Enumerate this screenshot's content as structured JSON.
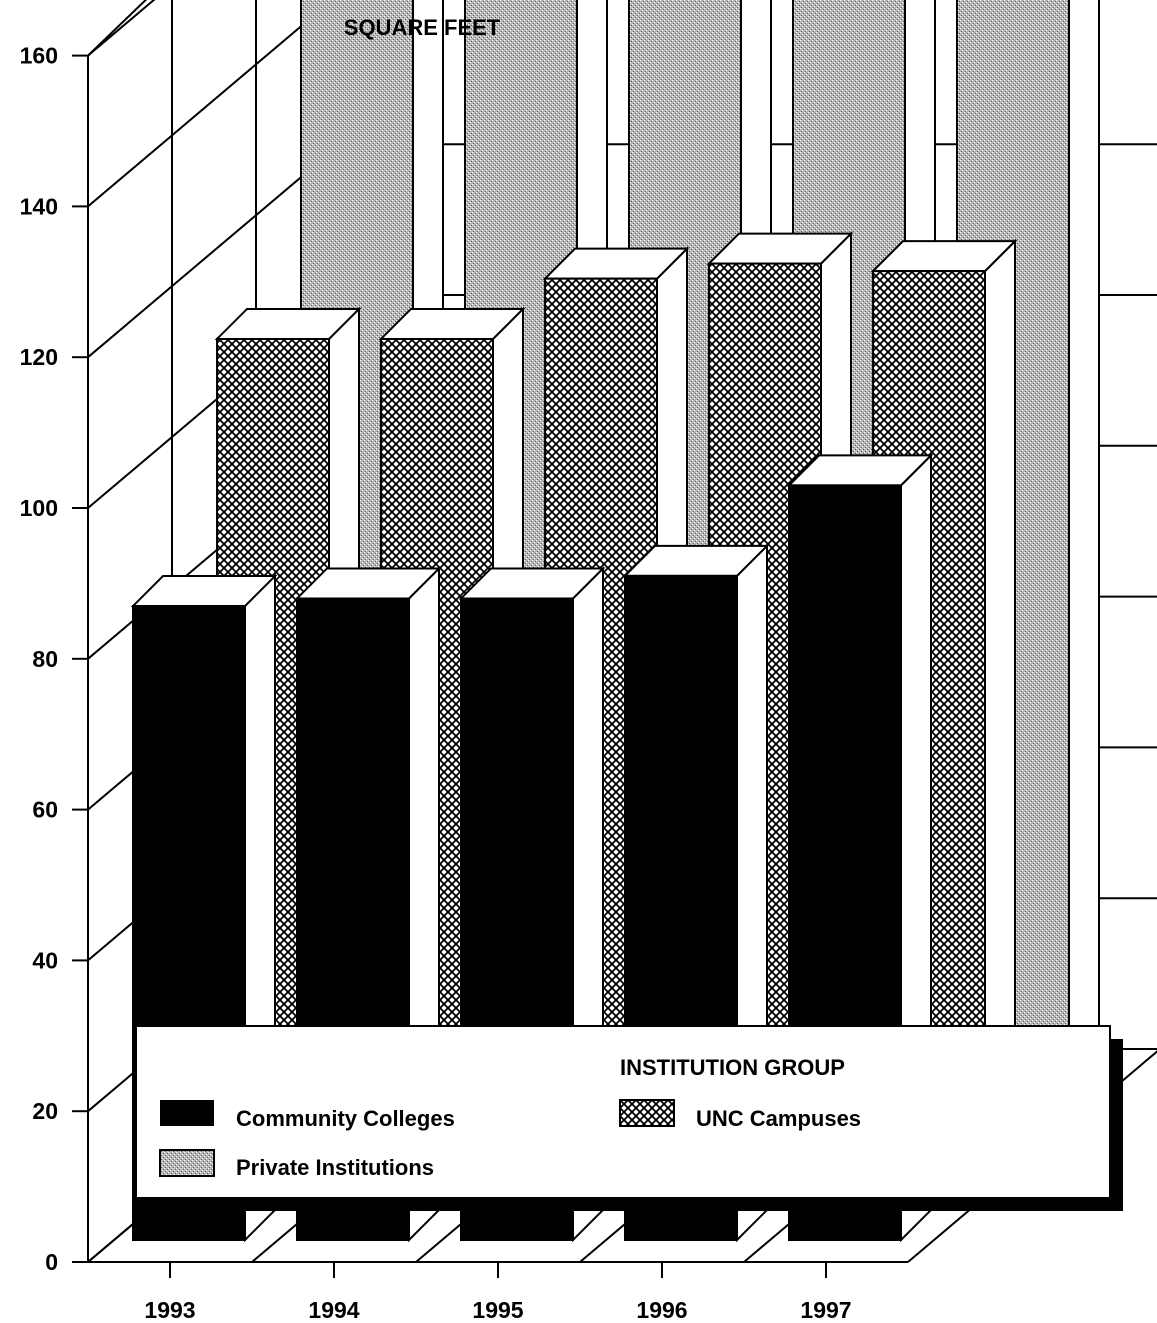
{
  "chart_data": {
    "type": "bar",
    "title": "SQUARE FEET",
    "xlabel": "",
    "ylabel": "SQUARE FEET",
    "ylim": [
      0,
      160
    ],
    "yticks": [
      "0",
      "20",
      "40",
      "60",
      "80",
      "100",
      "120",
      "140",
      "160"
    ],
    "categories": [
      "1993",
      "1994",
      "1995",
      "1996",
      "1997"
    ],
    "series": [
      {
        "name": "Community Colleges",
        "values": [
          87,
          88,
          88,
          91,
          103
        ]
      },
      {
        "name": "UNC Campuses",
        "values": [
          113,
          113,
          121,
          123,
          122
        ]
      },
      {
        "name": "Private Institutions",
        "values": [
          150,
          156,
          154,
          155,
          149
        ]
      }
    ],
    "grid": true,
    "legend": {
      "title": "INSTITUTION GROUP",
      "placement": "bottom",
      "items": [
        "Community Colleges",
        "UNC Campuses",
        "Private Institutions"
      ]
    }
  }
}
